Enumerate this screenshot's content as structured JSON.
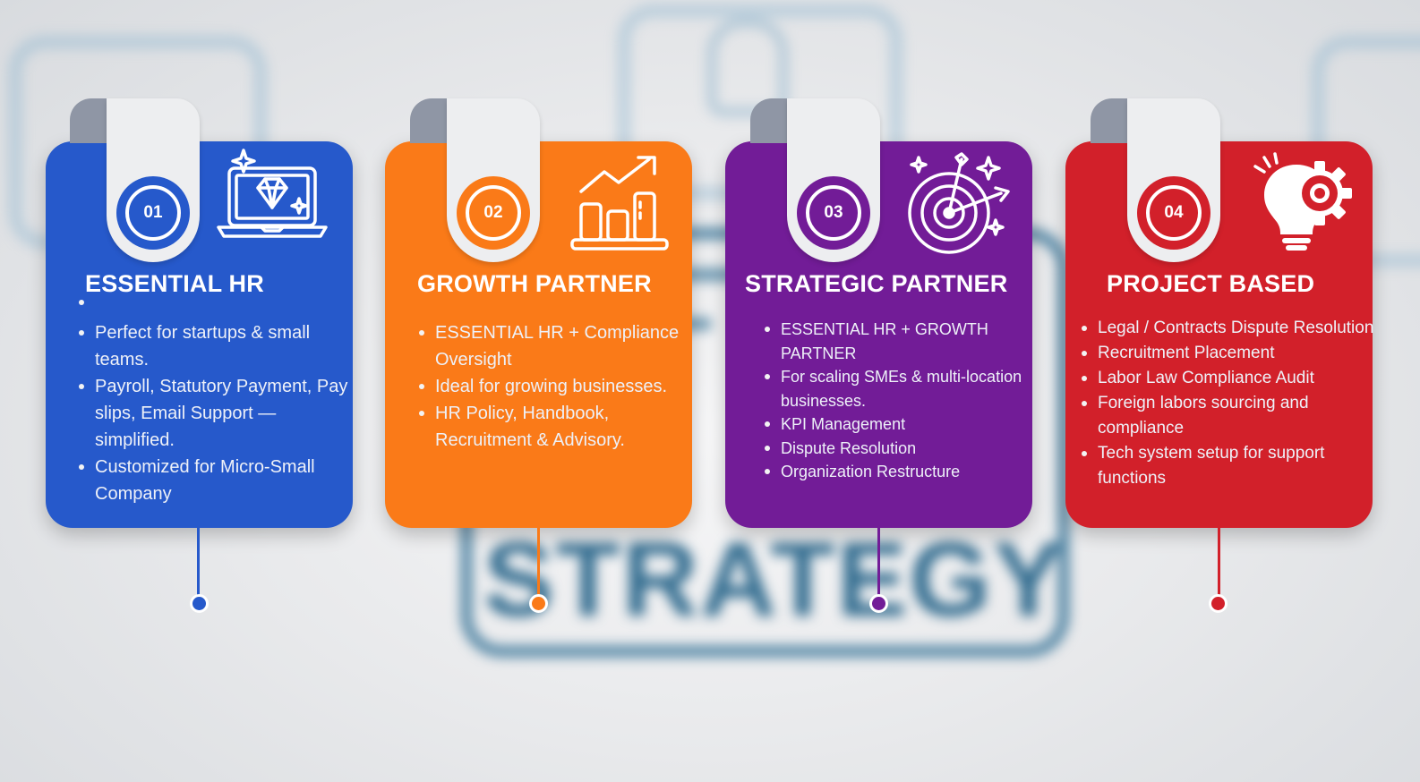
{
  "background": {
    "word": "STRATEGY"
  },
  "cards": [
    {
      "number": "01",
      "title": "ESSENTIAL HR",
      "color": "#2659cb",
      "icon": "laptop-diamond-icon",
      "points": [
        "Perfect for startups & small teams.",
        "Payroll, Statutory Payment, Pay slips, Email Support — simplified.",
        "Customized for Micro-Small Company"
      ]
    },
    {
      "number": "02",
      "title": "GROWTH PARTNER",
      "color": "#fa7a18",
      "icon": "growth-chart-icon",
      "points": [
        "ESSENTIAL HR + Compliance Oversight",
        "Ideal for growing businesses.",
        "HR Policy, Handbook, Recruitment & Advisory."
      ]
    },
    {
      "number": "03",
      "title": "STRATEGIC PARTNER",
      "color": "#721c97",
      "icon": "target-arrows-icon",
      "points": [
        "ESSENTIAL HR + GROWTH PARTNER",
        "For scaling SMEs & multi-location businesses.",
        "KPI Management",
        "Dispute Resolution",
        "Organization Restructure"
      ]
    },
    {
      "number": "04",
      "title": "PROJECT BASED",
      "color": "#d2202a",
      "icon": "lightbulb-gear-icon",
      "points": [
        "Legal / Contracts Dispute Resolution",
        "Recruitment Placement",
        "Labor Law Compliance Audit",
        "Foreign labors sourcing and compliance",
        "Tech system setup for support functions"
      ]
    }
  ]
}
